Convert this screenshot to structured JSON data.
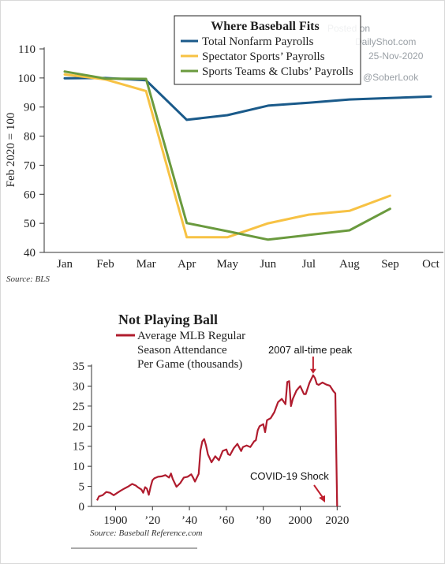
{
  "chart_data": [
    {
      "type": "line",
      "title": "Where Baseball Fits",
      "ylabel": "Feb 2020 = 100",
      "xlabel": "",
      "ylim": [
        40,
        110
      ],
      "yticks": [
        40,
        50,
        60,
        70,
        80,
        90,
        100,
        110
      ],
      "categories": [
        "Jan",
        "Feb",
        "Mar",
        "Apr",
        "May",
        "Jun",
        "Jul",
        "Aug",
        "Sep",
        "Oct"
      ],
      "grid": false,
      "legend": "top-right",
      "source": "Source:  BLS",
      "watermark": [
        "Posted on",
        "DailyShot.com",
        "25-Nov-2020",
        "@SoberLook"
      ],
      "series": [
        {
          "name": "Total Nonfarm Payrolls",
          "color": "#1a5a8a",
          "values": [
            99.9,
            100.0,
            99.2,
            85.6,
            87.2,
            90.5,
            91.5,
            92.6,
            93.1,
            93.6
          ]
        },
        {
          "name": "Spectator Sports’ Payrolls",
          "color": "#f7c244",
          "values": [
            101.2,
            99.5,
            95.5,
            45.2,
            45.2,
            50.0,
            53.0,
            54.3,
            59.5,
            null
          ]
        },
        {
          "name": "Sports Teams & Clubs’ Payrolls",
          "color": "#6a9a3e",
          "values": [
            102.2,
            99.8,
            99.7,
            50.1,
            47.3,
            44.4,
            46.0,
            47.6,
            55.0,
            null
          ]
        }
      ]
    },
    {
      "type": "line",
      "title": "Not Playing Ball",
      "xlabel": "",
      "ylabel": "",
      "ylim": [
        0,
        35
      ],
      "yticks": [
        0,
        5,
        10,
        15,
        20,
        25,
        30,
        35
      ],
      "xlim": [
        1887,
        2022
      ],
      "xticks": [
        1900,
        1920,
        1940,
        1960,
        1980,
        2000,
        2020
      ],
      "xtick_labels": [
        "1900",
        "’20",
        "’40",
        "’60",
        "’80",
        "2000",
        "2020"
      ],
      "grid": false,
      "source": "Source: Baseball Reference.com",
      "series": [
        {
          "name": "Average MLB Regular Season Attendance Per Game (thousands)",
          "color": "#b01c2e",
          "x": [
            1890,
            1891,
            1893,
            1895,
            1897,
            1899,
            1901,
            1903,
            1905,
            1907,
            1909,
            1911,
            1912,
            1914,
            1915,
            1916,
            1917,
            1918,
            1919,
            1920,
            1921,
            1923,
            1925,
            1927,
            1929,
            1930,
            1931,
            1933,
            1935,
            1937,
            1939,
            1941,
            1942,
            1943,
            1945,
            1946,
            1947,
            1948,
            1949,
            1950,
            1952,
            1954,
            1956,
            1958,
            1960,
            1961,
            1962,
            1964,
            1966,
            1968,
            1969,
            1971,
            1973,
            1975,
            1976,
            1977,
            1978,
            1980,
            1981,
            1982,
            1984,
            1986,
            1988,
            1990,
            1992,
            1993,
            1994,
            1995,
            1996,
            1998,
            2000,
            2002,
            2003,
            2005,
            2007,
            2008,
            2009,
            2010,
            2012,
            2014,
            2016,
            2018,
            2019,
            2020
          ],
          "values": [
            1.5,
            2.5,
            2.8,
            3.6,
            3.4,
            2.8,
            3.4,
            4.0,
            4.5,
            5.0,
            5.6,
            5.2,
            4.8,
            4.2,
            3.4,
            4.8,
            4.4,
            2.9,
            4.9,
            6.5,
            7.0,
            7.4,
            7.5,
            7.8,
            7.2,
            8.2,
            6.8,
            4.9,
            5.8,
            7.2,
            7.4,
            8.0,
            7.2,
            6.2,
            8.1,
            14.0,
            16.2,
            16.8,
            15.2,
            13.0,
            11.0,
            12.5,
            11.5,
            13.8,
            14.2,
            13.0,
            12.8,
            14.5,
            15.6,
            13.8,
            14.8,
            15.2,
            14.8,
            16.2,
            16.5,
            19.0,
            20.0,
            20.5,
            18.5,
            21.5,
            22.0,
            23.5,
            26.0,
            26.8,
            25.5,
            31.0,
            31.2,
            25.0,
            26.8,
            28.9,
            30.0,
            28.0,
            28.0,
            30.8,
            32.7,
            32.0,
            30.5,
            30.3,
            30.9,
            30.4,
            30.1,
            28.7,
            28.2,
            0
          ]
        }
      ],
      "annotations": [
        {
          "text": "2007 all-time peak",
          "x": 2007,
          "y": 32.7
        },
        {
          "text": "COVID-19 Shock",
          "x": 2020,
          "y": 0
        }
      ]
    }
  ]
}
